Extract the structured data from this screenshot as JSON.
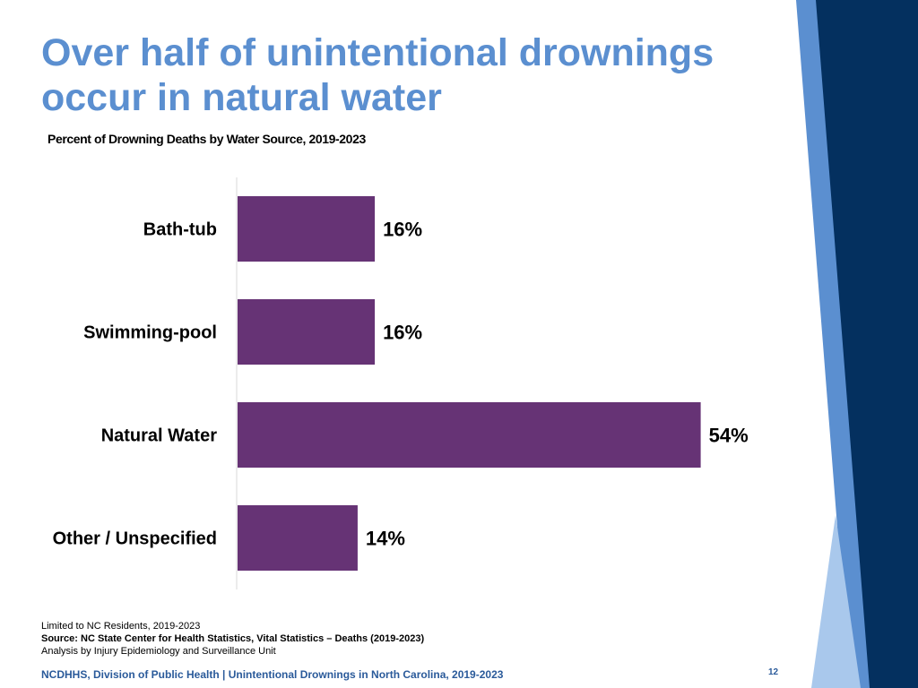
{
  "slide": {
    "title_line1": "Over half of unintentional drownings",
    "title_line2": "occur in natural water",
    "subtitle": "Percent of Drowning Deaths by Water Source, 2019-2023",
    "note_limited": "Limited to NC Residents, 2019-2023",
    "note_source": "Source: NC State Center for Health Statistics, Vital Statistics – Deaths (2019-2023)",
    "note_analysis": "Analysis by Injury Epidemiology and Surveillance Unit",
    "footer": "NCDHHS, Division of Public Health | Unintentional Drownings in North Carolina, 2019-2023",
    "page_number": "12"
  },
  "colors": {
    "bar": "#663375",
    "title": "#5b8fd0",
    "navy": "#04305f",
    "light_blue": "#a9c8ec",
    "mid_blue": "#5b8fd0"
  },
  "chart_data": {
    "type": "bar",
    "orientation": "horizontal",
    "title": "Percent of Drowning Deaths by Water Source, 2019-2023",
    "categories": [
      "Bath-tub",
      "Swimming-pool",
      "Natural Water",
      "Other / Unspecified"
    ],
    "values": [
      16,
      16,
      54,
      14
    ],
    "value_labels": [
      "16%",
      "16%",
      "54%",
      "14%"
    ],
    "xlim": [
      0,
      60
    ],
    "grid": false,
    "legend": "none"
  }
}
